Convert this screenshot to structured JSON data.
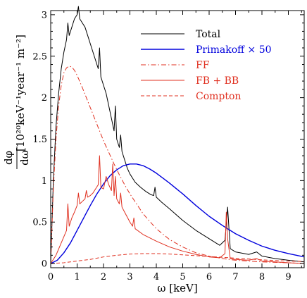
{
  "chart_data": {
    "type": "line",
    "xlabel": "ω [keV]",
    "ylabel": "dφ/dω [10²⁰ keV⁻¹ year⁻¹ m⁻²]",
    "ylabel_frac_num": "dφ",
    "ylabel_frac_den": "dω",
    "ylabel_units": "[10²⁰keV⁻¹year⁻¹ m⁻²]",
    "xlim": [
      0,
      9.6
    ],
    "ylim": [
      -0.05,
      3.05
    ],
    "x_ticks": [
      0,
      1,
      2,
      3,
      4,
      5,
      6,
      7,
      8,
      9
    ],
    "y_ticks": [
      0,
      0.5,
      1,
      1.5,
      2,
      2.5,
      3
    ],
    "x_tick_labels": [
      "0",
      "1",
      "2",
      "3",
      "4",
      "5",
      "6",
      "7",
      "8",
      "9"
    ],
    "y_tick_labels": [
      "0",
      "0.5",
      "1",
      "1.5",
      "2",
      "2.5",
      "3"
    ],
    "grid": false,
    "legend_position": "top-right",
    "series": [
      {
        "name": "Total",
        "color": "#000000",
        "style": "solid",
        "x": [
          0,
          0.1,
          0.2,
          0.3,
          0.4,
          0.5,
          0.6,
          0.65,
          0.7,
          0.8,
          0.9,
          1.0,
          1.05,
          1.1,
          1.2,
          1.3,
          1.4,
          1.5,
          1.6,
          1.7,
          1.8,
          1.85,
          1.9,
          2.0,
          2.1,
          2.2,
          2.3,
          2.4,
          2.45,
          2.5,
          2.6,
          2.65,
          2.7,
          2.8,
          2.9,
          3.0,
          3.2,
          3.4,
          3.6,
          3.8,
          3.9,
          3.95,
          4.0,
          4.2,
          4.5,
          5.0,
          5.5,
          6.0,
          6.4,
          6.6,
          6.7,
          6.8,
          7.0,
          7.5,
          7.8,
          8.0,
          8.5,
          9.0,
          9.6
        ],
        "y": [
          0.0,
          1.0,
          1.65,
          2.05,
          2.35,
          2.55,
          2.7,
          2.9,
          2.75,
          2.85,
          2.95,
          3.0,
          3.1,
          2.95,
          2.9,
          2.85,
          2.75,
          2.65,
          2.55,
          2.45,
          2.35,
          2.6,
          2.25,
          2.15,
          2.05,
          1.9,
          1.75,
          1.6,
          1.9,
          1.5,
          1.4,
          1.55,
          1.35,
          1.25,
          1.15,
          1.08,
          0.98,
          0.92,
          0.87,
          0.83,
          0.82,
          0.92,
          0.8,
          0.74,
          0.66,
          0.52,
          0.4,
          0.3,
          0.22,
          0.28,
          0.68,
          0.18,
          0.14,
          0.11,
          0.14,
          0.09,
          0.06,
          0.04,
          0.02
        ]
      },
      {
        "name": "Primakoff × 50",
        "color": "#0000dd",
        "style": "solid",
        "x": [
          0,
          0.25,
          0.5,
          0.75,
          1.0,
          1.25,
          1.5,
          1.75,
          2.0,
          2.25,
          2.5,
          2.75,
          3.0,
          3.25,
          3.5,
          3.75,
          4.0,
          4.5,
          5.0,
          5.5,
          6.0,
          6.5,
          7.0,
          7.5,
          8.0,
          8.5,
          9.0,
          9.6
        ],
        "y": [
          0.0,
          0.04,
          0.13,
          0.25,
          0.4,
          0.55,
          0.7,
          0.84,
          0.96,
          1.06,
          1.13,
          1.18,
          1.2,
          1.2,
          1.18,
          1.14,
          1.09,
          0.97,
          0.84,
          0.7,
          0.57,
          0.46,
          0.36,
          0.28,
          0.21,
          0.16,
          0.12,
          0.08
        ]
      },
      {
        "name": "FF",
        "color": "#e03020",
        "style": "dashdot",
        "x": [
          0,
          0.1,
          0.2,
          0.3,
          0.4,
          0.5,
          0.6,
          0.7,
          0.8,
          0.9,
          1.0,
          1.2,
          1.4,
          1.6,
          1.8,
          2.0,
          2.2,
          2.4,
          2.6,
          2.8,
          3.0,
          3.5,
          4.0,
          4.5,
          5.0,
          5.5,
          6.0,
          6.5,
          7.0,
          8.0,
          9.0,
          9.6
        ],
        "y": [
          0.0,
          0.9,
          1.5,
          1.9,
          2.15,
          2.3,
          2.36,
          2.38,
          2.37,
          2.33,
          2.27,
          2.12,
          1.96,
          1.8,
          1.64,
          1.48,
          1.34,
          1.2,
          1.07,
          0.95,
          0.84,
          0.6,
          0.42,
          0.29,
          0.2,
          0.13,
          0.09,
          0.06,
          0.04,
          0.02,
          0.01,
          0.0
        ]
      },
      {
        "name": "FB + BB",
        "color": "#e03020",
        "style": "solid",
        "x": [
          0,
          0.2,
          0.4,
          0.6,
          0.65,
          0.7,
          0.8,
          0.9,
          1.0,
          1.05,
          1.1,
          1.2,
          1.3,
          1.35,
          1.4,
          1.5,
          1.6,
          1.7,
          1.8,
          1.85,
          1.9,
          2.0,
          2.1,
          2.2,
          2.3,
          2.35,
          2.4,
          2.45,
          2.5,
          2.6,
          2.65,
          2.7,
          2.8,
          3.0,
          3.1,
          3.15,
          3.2,
          3.5,
          4.0,
          4.5,
          5.0,
          5.5,
          6.0,
          6.4,
          6.6,
          6.65,
          6.7,
          6.8,
          7.0,
          7.5,
          7.8,
          8.0,
          8.5,
          9.0,
          9.6
        ],
        "y": [
          0.0,
          0.1,
          0.25,
          0.4,
          0.72,
          0.45,
          0.55,
          0.62,
          0.7,
          0.85,
          0.72,
          0.75,
          0.78,
          0.88,
          0.8,
          0.82,
          0.85,
          0.9,
          0.95,
          1.3,
          0.92,
          0.9,
          1.05,
          0.95,
          0.88,
          1.2,
          0.82,
          1.05,
          0.78,
          0.72,
          0.85,
          0.68,
          0.62,
          0.5,
          0.45,
          0.55,
          0.42,
          0.35,
          0.27,
          0.2,
          0.15,
          0.11,
          0.08,
          0.07,
          0.12,
          0.62,
          0.3,
          0.06,
          0.05,
          0.04,
          0.06,
          0.03,
          0.02,
          0.01,
          0.0
        ]
      },
      {
        "name": "Compton",
        "color": "#e03020",
        "style": "dashed",
        "x": [
          0,
          0.5,
          1.0,
          1.5,
          2.0,
          2.5,
          3.0,
          3.5,
          4.0,
          4.5,
          5.0,
          5.5,
          6.0,
          6.5,
          7.0,
          7.5,
          8.0,
          8.5,
          9.0,
          9.6
        ],
        "y": [
          0.0,
          0.01,
          0.03,
          0.05,
          0.08,
          0.1,
          0.115,
          0.12,
          0.12,
          0.115,
          0.105,
          0.095,
          0.085,
          0.075,
          0.065,
          0.055,
          0.045,
          0.037,
          0.03,
          0.025
        ]
      }
    ]
  }
}
